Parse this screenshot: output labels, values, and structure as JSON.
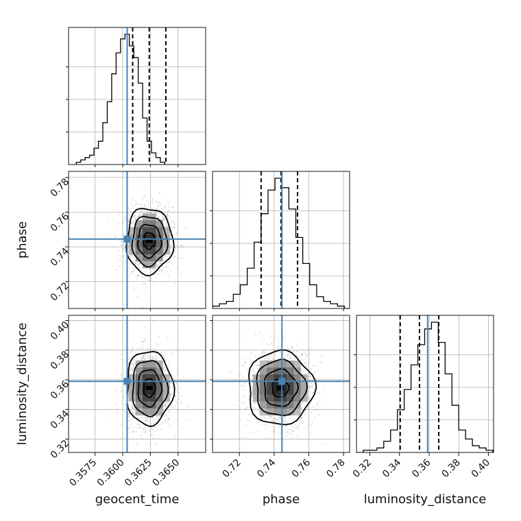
{
  "chart_data": {
    "type": "corner",
    "parameters": [
      "geocent_time",
      "phase",
      "luminosity_distance"
    ],
    "truths": {
      "geocent_time": 0.3604,
      "phase": 0.7445,
      "luminosity_distance": 0.359
    },
    "truth_color": "#4682b4",
    "ranges": {
      "geocent_time": [
        0.3551,
        0.3675
      ],
      "phase": [
        0.7045,
        0.7835
      ],
      "luminosity_distance": [
        0.311,
        0.4035
      ]
    },
    "ticks": {
      "geocent_time": {
        "values": [
          0.3575,
          0.36,
          0.3625,
          0.365
        ],
        "labels": [
          "0.3575",
          "0.3600",
          "0.3625",
          "0.3650"
        ]
      },
      "phase": {
        "values": [
          0.72,
          0.74,
          0.76,
          0.78
        ],
        "labels": [
          "0.72",
          "0.74",
          "0.76",
          "0.78"
        ]
      },
      "luminosity_distance": {
        "values": [
          0.32,
          0.34,
          0.36,
          0.38,
          0.4
        ],
        "labels": [
          "0.32",
          "0.34",
          "0.36",
          "0.38",
          "0.40"
        ]
      }
    },
    "histograms": {
      "geocent_time": {
        "bin_start": 0.3558,
        "bin_width": 0.0004,
        "counts": [
          1,
          2,
          3,
          4,
          7,
          10,
          18,
          27,
          39,
          48,
          54,
          56,
          51,
          46,
          35,
          20,
          10,
          5,
          3,
          1
        ],
        "quantiles": [
          0.3609,
          0.3624,
          0.3639
        ]
      },
      "phase": {
        "bin_start": 0.7045,
        "bin_width": 0.004,
        "counts": [
          1,
          2,
          3,
          6,
          10,
          17,
          28,
          40,
          50,
          55,
          51,
          42,
          30,
          19,
          10,
          5,
          3,
          2,
          1,
          0
        ],
        "quantiles": [
          0.7325,
          0.744,
          0.7535
        ]
      },
      "luminosity_distance": {
        "bin_start": 0.311,
        "bin_width": 0.0046,
        "counts": [
          0,
          1,
          1,
          2,
          5,
          10,
          19,
          28,
          39,
          48,
          55,
          58,
          49,
          35,
          21,
          10,
          6,
          3,
          2,
          1
        ],
        "quantiles": [
          0.3405,
          0.3535,
          0.3665
        ]
      }
    },
    "scatter_2d": [
      {
        "x": "geocent_time",
        "y": "phase",
        "center": [
          0.3624,
          0.7435
        ],
        "sigma": [
          0.00105,
          0.0095
        ]
      },
      {
        "x": "geocent_time",
        "y": "luminosity_distance",
        "center": [
          0.3624,
          0.3545
        ],
        "sigma": [
          0.00105,
          0.0125
        ]
      },
      {
        "x": "phase",
        "y": "luminosity_distance",
        "center": [
          0.7435,
          0.3545
        ],
        "sigma": [
          0.0095,
          0.0125
        ]
      }
    ],
    "contour_levels_sigma": [
      0.5,
      1.0,
      1.5,
      2.0
    ],
    "axis_labels": {
      "geocent_time": "geocent_time",
      "phase": "phase",
      "luminosity_distance": "luminosity_distance"
    }
  }
}
